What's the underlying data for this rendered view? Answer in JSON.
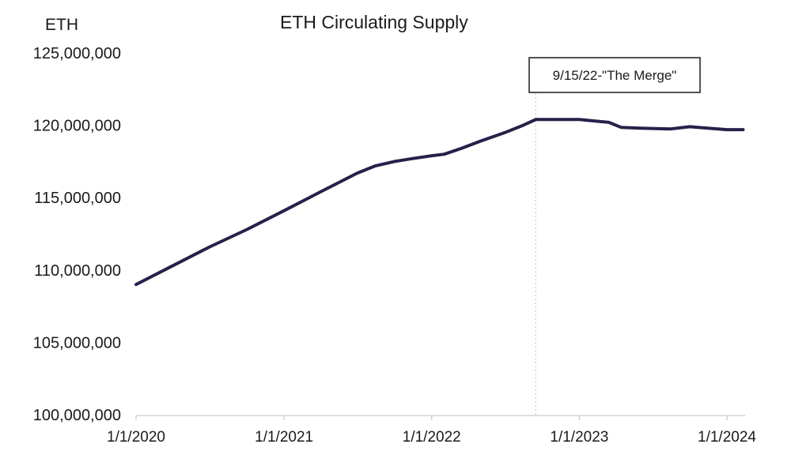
{
  "chart_data": {
    "type": "line",
    "title": "ETH Circulating Supply",
    "ylabel": "ETH",
    "xlabel": "",
    "ylim": [
      100000000,
      125000000
    ],
    "y_ticks": [
      {
        "value": 100000000,
        "label": "100,000,000"
      },
      {
        "value": 105000000,
        "label": "105,000,000"
      },
      {
        "value": 110000000,
        "label": "110,000,000"
      },
      {
        "value": 115000000,
        "label": "115,000,000"
      },
      {
        "value": 120000000,
        "label": "120,000,000"
      },
      {
        "value": 125000000,
        "label": "125,000,000"
      }
    ],
    "x_ticks": [
      {
        "value": "2020-01-01",
        "label": "1/1/2020"
      },
      {
        "value": "2021-01-01",
        "label": "1/1/2021"
      },
      {
        "value": "2022-01-01",
        "label": "1/1/2022"
      },
      {
        "value": "2023-01-01",
        "label": "1/1/2023"
      },
      {
        "value": "2024-01-01",
        "label": "1/1/2024"
      }
    ],
    "xlim": [
      "2020-01-01",
      "2024-02-15"
    ],
    "grid": false,
    "legend": "none",
    "line_color": "#24224a",
    "series": [
      {
        "points": [
          {
            "x": "2020-01-01",
            "y": 109000000
          },
          {
            "x": "2020-04-01",
            "y": 110300000
          },
          {
            "x": "2020-07-01",
            "y": 111600000
          },
          {
            "x": "2020-10-01",
            "y": 112800000
          },
          {
            "x": "2021-01-01",
            "y": 114100000
          },
          {
            "x": "2021-04-01",
            "y": 115400000
          },
          {
            "x": "2021-07-01",
            "y": 116700000
          },
          {
            "x": "2021-08-15",
            "y": 117200000
          },
          {
            "x": "2021-10-01",
            "y": 117500000
          },
          {
            "x": "2021-11-15",
            "y": 117700000
          },
          {
            "x": "2022-01-01",
            "y": 117900000
          },
          {
            "x": "2022-02-01",
            "y": 118000000
          },
          {
            "x": "2022-03-15",
            "y": 118400000
          },
          {
            "x": "2022-05-01",
            "y": 118900000
          },
          {
            "x": "2022-07-01",
            "y": 119500000
          },
          {
            "x": "2022-08-15",
            "y": 120000000
          },
          {
            "x": "2022-09-15",
            "y": 120400000
          },
          {
            "x": "2022-11-01",
            "y": 120400000
          },
          {
            "x": "2023-01-01",
            "y": 120400000
          },
          {
            "x": "2023-03-15",
            "y": 120200000
          },
          {
            "x": "2023-04-15",
            "y": 119850000
          },
          {
            "x": "2023-06-01",
            "y": 119800000
          },
          {
            "x": "2023-08-15",
            "y": 119750000
          },
          {
            "x": "2023-10-01",
            "y": 119900000
          },
          {
            "x": "2023-11-15",
            "y": 119800000
          },
          {
            "x": "2024-01-01",
            "y": 119700000
          },
          {
            "x": "2024-02-10",
            "y": 119700000
          }
        ]
      }
    ],
    "annotations": [
      {
        "x": "2022-09-15",
        "text": "9/15/22-\"The Merge\"",
        "style": "dotted-vertical-line"
      }
    ]
  }
}
